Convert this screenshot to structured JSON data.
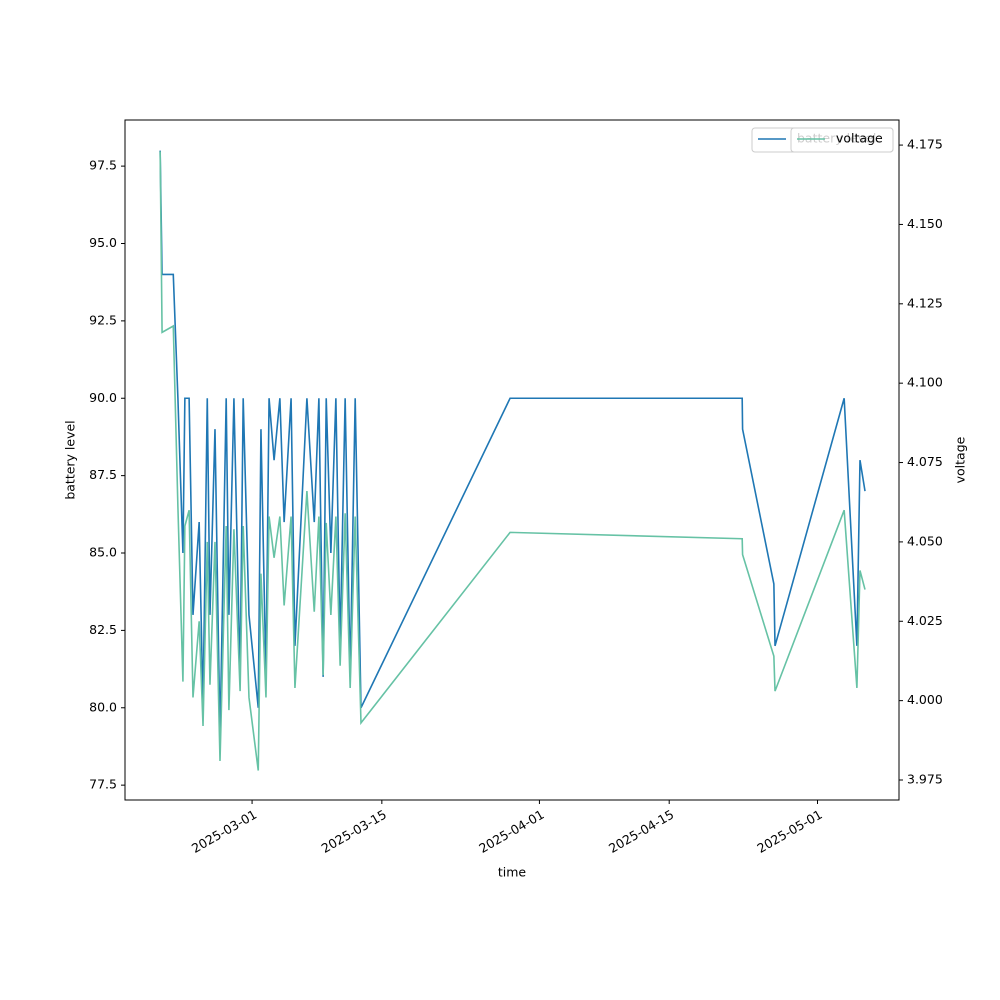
{
  "chart_data": {
    "type": "line",
    "xlabel": "time",
    "ylabel": "battery level",
    "y2label": "voltage",
    "legend": "upper right",
    "x": [
      "2025-02-19T02:00",
      "2025-02-19T07:00",
      "2025-02-20T12:00",
      "2025-02-21T00:00",
      "2025-02-21T13:00",
      "2025-02-21T18:00",
      "2025-02-22T05:00",
      "2025-02-22T15:00",
      "2025-02-23T07:00",
      "2025-02-23T17:00",
      "2025-02-24T04:00",
      "2025-02-24T11:00",
      "2025-02-25T00:00",
      "2025-02-25T13:00",
      "2025-02-26T05:00",
      "2025-02-26T12:00",
      "2025-02-27T01:00",
      "2025-02-27T17:00",
      "2025-02-28T01:00",
      "2025-02-28T16:00",
      "2025-03-01T16:00",
      "2025-03-01T23:00",
      "2025-03-02T12:00",
      "2025-03-02T20:00",
      "2025-03-03T09:00",
      "2025-03-04T00:00",
      "2025-03-04T11:00",
      "2025-03-05T05:00",
      "2025-03-05T15:00",
      "2025-03-06T22:00",
      "2025-03-07T17:00",
      "2025-03-08T05:00",
      "2025-03-08T16:00",
      "2025-03-09T00:00",
      "2025-03-09T12:00",
      "2025-03-10T01:00",
      "2025-03-10T12:00",
      "2025-03-11T01:00",
      "2025-03-11T14:00",
      "2025-03-12T03:00",
      "2025-03-12T18:00",
      "2025-03-28T20:00",
      "2025-04-22T21:00",
      "2025-04-22T22:00",
      "2025-04-26T07:00",
      "2025-04-26T10:00",
      "2025-05-03T21:00",
      "2025-05-05T06:00",
      "2025-05-05T14:00",
      "2025-05-06T03:00"
    ],
    "series": [
      {
        "name": "battery level",
        "color": "#1f77b4",
        "axis": "y",
        "values": [
          98,
          94,
          94,
          90,
          85,
          90,
          90,
          83,
          86,
          80,
          90,
          83,
          89,
          79,
          90,
          83,
          90,
          81,
          90,
          83,
          80,
          89,
          81,
          90,
          88,
          90,
          86,
          90,
          82,
          90,
          86,
          90,
          81,
          90,
          85,
          90,
          82,
          90,
          81,
          90,
          80,
          90,
          90,
          89,
          84,
          82,
          90,
          82,
          88,
          87
        ]
      },
      {
        "name": "voltage",
        "color": "#66c2a5",
        "axis": "y2",
        "values": [
          4.173,
          4.116,
          4.118,
          4.061,
          4.006,
          4.055,
          4.06,
          4.001,
          4.025,
          3.992,
          4.05,
          4.005,
          4.05,
          3.981,
          4.055,
          3.997,
          4.054,
          4.003,
          4.055,
          4.001,
          3.978,
          4.04,
          4.001,
          4.058,
          4.045,
          4.058,
          4.03,
          4.058,
          4.004,
          4.066,
          4.028,
          4.058,
          4.008,
          4.056,
          4.027,
          4.058,
          4.011,
          4.059,
          4.004,
          4.058,
          3.993,
          4.053,
          4.051,
          4.046,
          4.014,
          4.003,
          4.06,
          4.004,
          4.041,
          4.035
        ]
      }
    ],
    "xlim": [
      "2025-02-15T07:00",
      "2025-05-09T19:00"
    ],
    "xticks": [
      "2025-03-01",
      "2025-03-15",
      "2025-04-01",
      "2025-04-15",
      "2025-05-01"
    ],
    "ylim": [
      77.02,
      98.99
    ],
    "yticks": [
      {
        "value": 77.5,
        "label": "77.5"
      },
      {
        "value": 80,
        "label": "80.0"
      },
      {
        "value": 82.5,
        "label": "82.5"
      },
      {
        "value": 85,
        "label": "85.0"
      },
      {
        "value": 87.5,
        "label": "87.5"
      },
      {
        "value": 90,
        "label": "90.0"
      },
      {
        "value": 92.5,
        "label": "92.5"
      },
      {
        "value": 95,
        "label": "95.0"
      },
      {
        "value": 97.5,
        "label": "97.5"
      }
    ],
    "y2lim": [
      3.9687,
      4.1829
    ],
    "y2ticks": [
      {
        "value": 3.975,
        "label": "3.975"
      },
      {
        "value": 4,
        "label": "4.000"
      },
      {
        "value": 4.025,
        "label": "4.025"
      },
      {
        "value": 4.05,
        "label": "4.050"
      },
      {
        "value": 4.075,
        "label": "4.075"
      },
      {
        "value": 4.1,
        "label": "4.100"
      },
      {
        "value": 4.125,
        "label": "4.125"
      },
      {
        "value": 4.15,
        "label": "4.150"
      },
      {
        "value": 4.175,
        "label": "4.175"
      }
    ]
  }
}
